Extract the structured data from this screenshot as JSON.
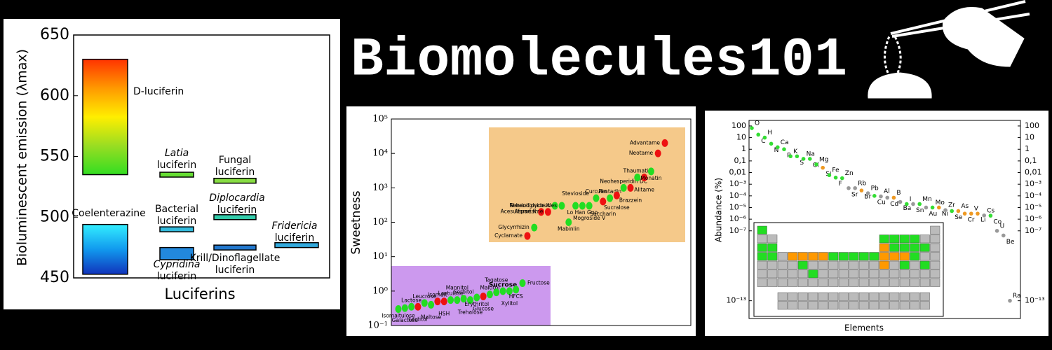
{
  "header": {
    "title": "Biomolecules101"
  },
  "chart_data": [
    {
      "type": "range",
      "ylabel": "Bioluminescent emission (λmax)",
      "xlabel": "Luciferins",
      "ylim": [
        450,
        650
      ],
      "yticks": [
        450,
        500,
        550,
        600,
        650
      ],
      "labels": [
        [
          "D-luciferin"
        ],
        [
          "Coelenterazine"
        ],
        [
          "Latia",
          "luciferin"
        ],
        [
          "Bacterial",
          "luciferin"
        ],
        [
          "Cypridina",
          "luciferin"
        ],
        [
          "Fungal",
          "luciferin"
        ],
        [
          "Diplocardia",
          "luciferin"
        ],
        [
          "Krill/Dinoflagellate",
          "luciferin"
        ],
        [
          "Fridericia",
          "luciferin"
        ]
      ],
      "low": [
        535,
        453,
        533,
        488,
        465,
        528,
        498,
        473,
        475
      ],
      "high": [
        630,
        494,
        537,
        492,
        475,
        532,
        502,
        477,
        479
      ],
      "colors": [
        [
          "#ff3300",
          "#ff9900",
          "#ffee00",
          "#99dd22",
          "#33dd22"
        ],
        [
          "#33eeff",
          "#1199ee",
          "#1133bb"
        ],
        "#66dd33",
        "#33bbdd",
        "#2288dd",
        "#88dd44",
        "#33ccaa",
        "#2277cc",
        "#33aadd"
      ]
    },
    {
      "type": "dot",
      "ylabel": "Sweetness",
      "log": true,
      "ylim": [
        0.1,
        100000
      ],
      "yticks": [
        {
          "value": 0.1,
          "label": "10⁻¹"
        },
        {
          "value": 1,
          "label": "10⁰"
        },
        {
          "value": 10,
          "label": "10¹"
        },
        {
          "value": 100,
          "label": "10²"
        },
        {
          "value": 1000,
          "label": "10³"
        },
        {
          "value": 10000,
          "label": "10⁴"
        },
        {
          "value": 100000,
          "label": "10⁵"
        }
      ],
      "groups": [
        {
          "color": "#cc99ee",
          "categories": [
            "Isomaltulose",
            "Galactose",
            "Lactose",
            "Lactitol",
            "Leucrose",
            "Maltose",
            "Isomalt",
            "HSH",
            "Lactulose",
            "Mannitol",
            "Sorbitol",
            "Trehalose",
            "Erythritol",
            "Glucose",
            "Maltitol",
            "Tagatose",
            "Sucrose",
            "Xylitol",
            "HFCS",
            "Fructose"
          ],
          "values": [
            0.3,
            0.32,
            0.35,
            0.35,
            0.45,
            0.4,
            0.5,
            0.5,
            0.55,
            0.55,
            0.6,
            0.55,
            0.65,
            0.7,
            0.8,
            0.92,
            1,
            1,
            1.1,
            1.7
          ],
          "colors": [
            "#22dd22",
            "#22dd22",
            "#22dd22",
            "#ee1111",
            "#22dd22",
            "#22dd22",
            "#ee1111",
            "#ee1111",
            "#22dd22",
            "#22dd22",
            "#22dd22",
            "#22dd22",
            "#22dd22",
            "#ee1111",
            "#22dd22",
            "#22dd22",
            "#22dd22",
            "#22dd22",
            "#22dd22",
            "#22dd22"
          ]
        },
        {
          "color": "#f5c98a",
          "categories": [
            "Cyclamate",
            "Glycyrrhizin",
            "Acesulfame K",
            "Aspartame",
            "Rebaudioside A",
            "Steviol glycosides",
            "Mabinlin",
            "Stevioside",
            "Lo Han Guo",
            "Mogroside V",
            "Curculin",
            "Saccharin",
            "Pentadin",
            "Sucralose",
            "Neohesperidin DC",
            "Brazzein",
            "Thaumatin",
            "Alitame",
            "Monatin",
            "Neotame",
            "Advantame"
          ],
          "values": [
            40,
            70,
            200,
            200,
            300,
            300,
            100,
            300,
            300,
            300,
            500,
            400,
            500,
            600,
            1000,
            1000,
            2000,
            2000,
            3000,
            10000,
            20000
          ],
          "colors": [
            "#ee1111",
            "#22dd22",
            "#ee1111",
            "#ee1111",
            "#22dd22",
            "#22dd22",
            "#22dd22",
            "#22dd22",
            "#22dd22",
            "#22dd22",
            "#22dd22",
            "#ee1111",
            "#22dd22",
            "#ee1111",
            "#22dd22",
            "#ee1111",
            "#22dd22",
            "#ee1111",
            "#22dd22",
            "#ee1111",
            "#ee1111"
          ]
        }
      ]
    },
    {
      "type": "dot",
      "ylabel": "Abundance (%)",
      "xlabel": "Elements",
      "log": true,
      "ylim": [
        3e-15,
        300
      ],
      "yticks": [
        100,
        10,
        1,
        {
          "value": 0.1,
          "label": "0,1"
        },
        {
          "value": 0.01,
          "label": "0,01"
        },
        {
          "value": 0.001,
          "label": "10⁻³"
        },
        {
          "value": 0.0001,
          "label": "10⁻⁴"
        },
        {
          "value": 1e-05,
          "label": "10⁻⁵"
        },
        {
          "value": 1e-06,
          "label": "10⁻⁶"
        },
        {
          "value": 1e-07,
          "label": "10⁻⁷"
        },
        {
          "value": 1e-13,
          "label": "10⁻¹³"
        }
      ],
      "categories": [
        "O",
        "C",
        "H",
        "N",
        "Ca",
        "P",
        "K",
        "S",
        "Na",
        "Cl",
        "Mg",
        "Si",
        "Fe",
        "F",
        "Zn",
        "Sr",
        "Rb",
        "Br",
        "Pb",
        "Cu",
        "Al",
        "Cd",
        "B",
        "Ba",
        "I",
        "Sn",
        "Mn",
        "Au",
        "Mo",
        "Ni",
        "Zr",
        "Se",
        "As",
        "Cr",
        "V",
        "Li",
        "Cs",
        "Co",
        "U",
        "Be",
        "Ra"
      ],
      "values": [
        65,
        18,
        10,
        3,
        1.5,
        1,
        0.25,
        0.25,
        0.15,
        0.15,
        0.05,
        0.026,
        0.006,
        0.0037,
        0.0033,
        0.00046,
        0.00046,
        0.00029,
        0.00017,
        0.0001,
        9e-05,
        7e-05,
        7e-05,
        3e-05,
        2e-05,
        2e-05,
        2e-05,
        1e-05,
        1e-05,
        1e-05,
        6e-06,
        5e-06,
        5e-06,
        3e-06,
        3e-06,
        3e-06,
        2.1e-06,
        2e-06,
        1e-07,
        4e-08,
        1e-13
      ],
      "colors": [
        "#33dd33",
        "#33dd33",
        "#33dd33",
        "#33dd33",
        "#33dd33",
        "#33dd33",
        "#33dd33",
        "#33dd33",
        "#33dd33",
        "#33dd33",
        "#33dd33",
        "#ee9922",
        "#33dd33",
        "#33dd33",
        "#33dd33",
        "#999999",
        "#999999",
        "#ee9922",
        "#999999",
        "#33dd33",
        "#999999",
        "#999999",
        "#ee9922",
        "#999999",
        "#33dd33",
        "#999999",
        "#33dd33",
        "#999999",
        "#33dd33",
        "#ee9922",
        "#999999",
        "#33dd33",
        "#ee9922",
        "#ee9922",
        "#ee9922",
        "#ee9922",
        "#999999",
        "#33dd33",
        "#999999",
        "#999999",
        "#999999"
      ]
    }
  ]
}
